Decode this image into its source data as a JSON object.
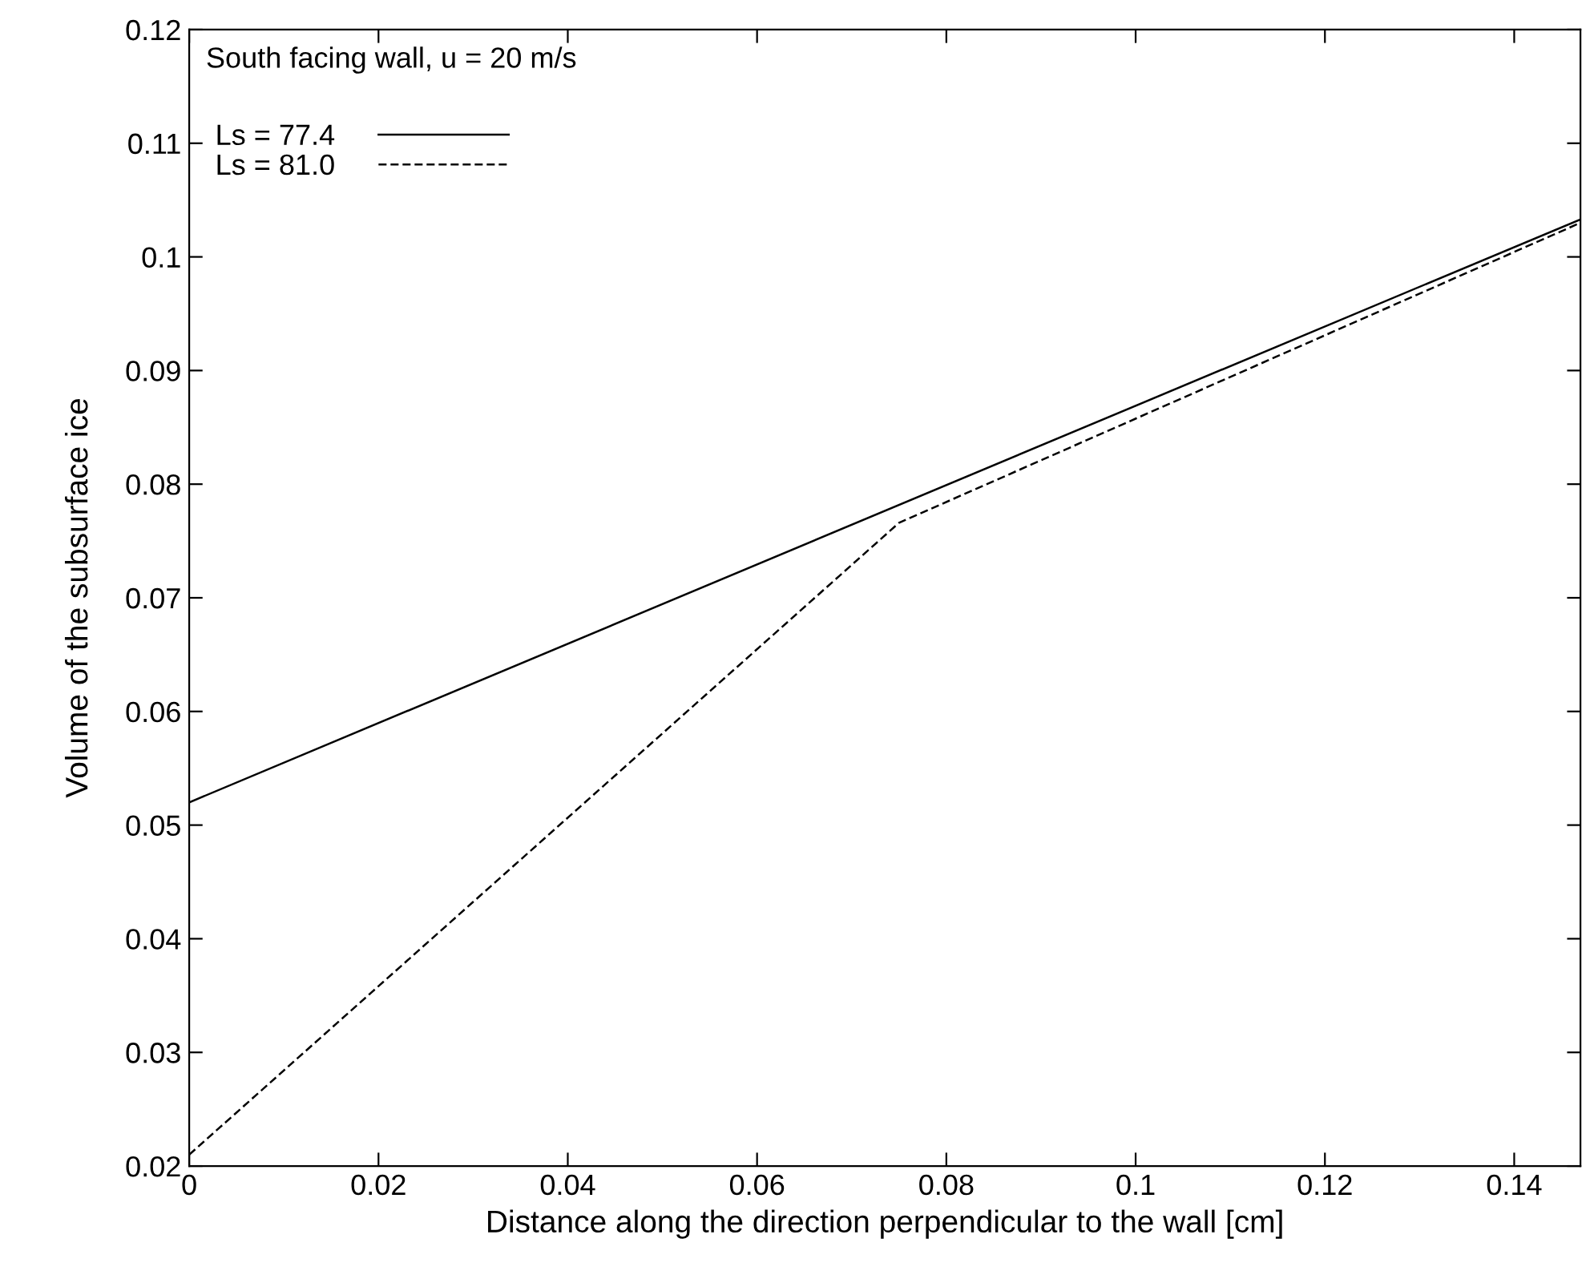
{
  "chart_data": {
    "type": "line",
    "xlabel": "Distance along the direction perpendicular to the wall [cm]",
    "ylabel": "Volume of the subsurface ice",
    "annotations": [
      "South facing wall, u = 20 m/s"
    ],
    "series": [
      {
        "name": "Ls = 77.4",
        "color": "#000000",
        "line_style": "solid",
        "x": [
          0,
          0.147
        ],
        "values": [
          0.052,
          0.1033
        ]
      },
      {
        "name": "Ls = 81.0",
        "color": "#000000",
        "line_style": "dashed",
        "x": [
          0,
          0.075,
          0.147
        ],
        "values": [
          0.021,
          0.0766,
          0.103
        ]
      }
    ],
    "xlim": [
      0,
      0.147
    ],
    "ylim": [
      0.02,
      0.12
    ],
    "xticks": [
      0,
      0.02,
      0.04,
      0.06,
      0.08,
      0.1,
      0.12,
      0.14
    ],
    "yticks": [
      0.02,
      0.03,
      0.04,
      0.05,
      0.06,
      0.07,
      0.08,
      0.09,
      0.1,
      0.11,
      0.12
    ],
    "grid": false,
    "legend": "top left",
    "marker": "none"
  }
}
